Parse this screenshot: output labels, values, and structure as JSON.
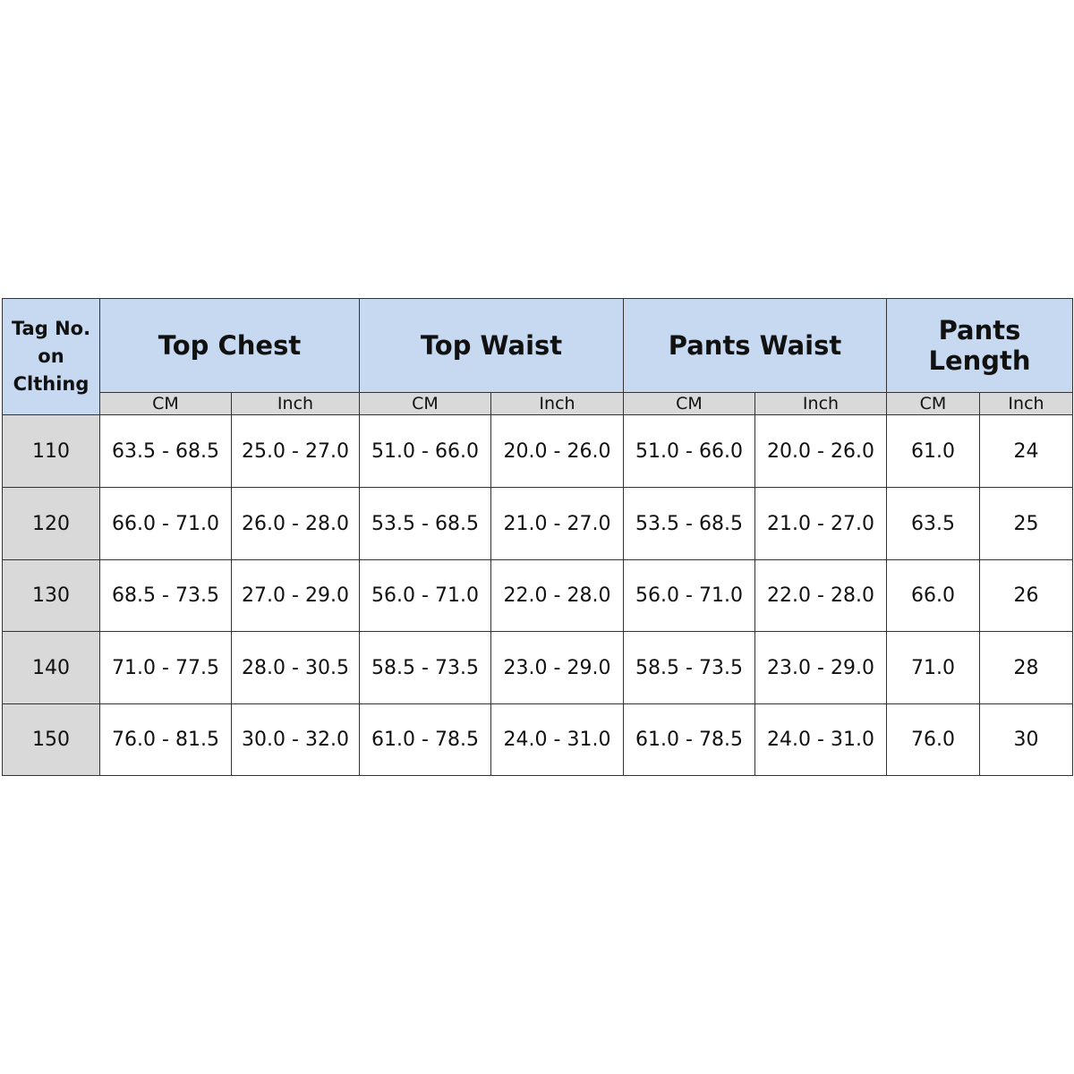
{
  "table": {
    "tag_header": [
      "Tag No.",
      "on",
      "Clthing"
    ],
    "groups": [
      "Top Chest",
      "Top Waist",
      "Pants Waist",
      "Pants Length"
    ],
    "units": [
      "CM",
      "Inch",
      "CM",
      "Inch",
      "CM",
      "Inch",
      "CM",
      "Inch"
    ],
    "rows": [
      [
        "110",
        "63.5 - 68.5",
        "25.0 - 27.0",
        "51.0 - 66.0",
        "20.0 - 26.0",
        "51.0 - 66.0",
        "20.0 - 26.0",
        "61.0",
        "24"
      ],
      [
        "120",
        "66.0 - 71.0",
        "26.0 - 28.0",
        "53.5 - 68.5",
        "21.0 - 27.0",
        "53.5 - 68.5",
        "21.0 - 27.0",
        "63.5",
        "25"
      ],
      [
        "130",
        "68.5 - 73.5",
        "27.0 - 29.0",
        "56.0 - 71.0",
        "22.0 - 28.0",
        "56.0 - 71.0",
        "22.0 - 28.0",
        "66.0",
        "26"
      ],
      [
        "140",
        "71.0 - 77.5",
        "28.0 - 30.5",
        "58.5 - 73.5",
        "23.0 - 29.0",
        "58.5 - 73.5",
        "23.0 - 29.0",
        "71.0",
        "28"
      ],
      [
        "150",
        "76.0 - 81.5",
        "30.0 - 32.0",
        "61.0 - 78.5",
        "24.0 - 31.0",
        "61.0 - 78.5",
        "24.0 - 31.0",
        "76.0",
        "30"
      ]
    ]
  }
}
